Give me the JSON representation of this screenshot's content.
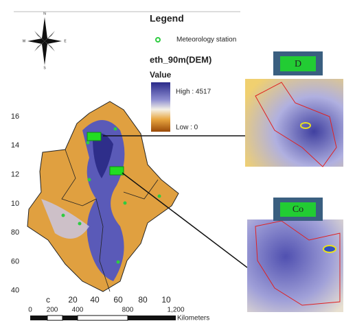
{
  "compass": {
    "north": "N",
    "east": "E",
    "south": "S",
    "west": "W"
  },
  "legend": {
    "title": "Legend",
    "station": "Meteorology station",
    "layer": "eth_90m(DEM)",
    "value_heading": "Value",
    "high": "High : 4517",
    "low": "Low : 0"
  },
  "insets": [
    {
      "label": "D"
    },
    {
      "label": "Co"
    }
  ],
  "left_labels": [
    "16",
    "14",
    "12",
    "10",
    "80",
    "60",
    "40"
  ],
  "bottom_labels": [
    "c",
    "20",
    "40",
    "60",
    "80",
    "10"
  ],
  "scale_bar": {
    "labels": [
      "0",
      "200",
      "400",
      "800",
      "1,200"
    ],
    "unit": "Kilometers"
  }
}
